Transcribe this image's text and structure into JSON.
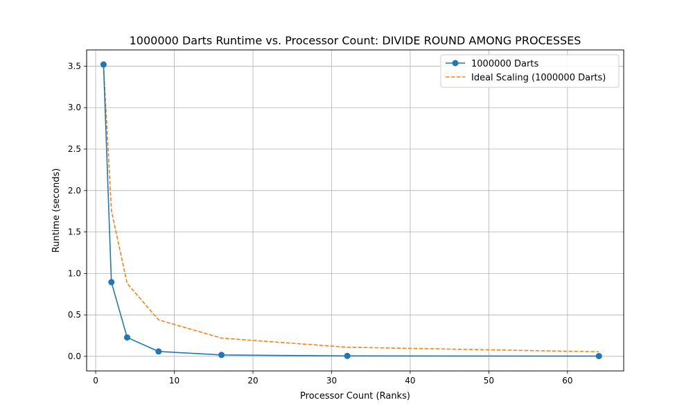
{
  "chart_data": {
    "type": "line",
    "title": "1000000 Darts Runtime vs. Processor Count: DIVIDE ROUND AMONG PROCESSES",
    "xlabel": "Processor Count (Ranks)",
    "ylabel": "Runtime (seconds)",
    "xlim": [
      -1.15,
      67.15
    ],
    "ylim": [
      -0.176,
      3.696
    ],
    "xticks": [
      0,
      10,
      20,
      30,
      40,
      50,
      60
    ],
    "xtick_labels": [
      "0",
      "10",
      "20",
      "30",
      "40",
      "50",
      "60"
    ],
    "yticks": [
      0.0,
      0.5,
      1.0,
      1.5,
      2.0,
      2.5,
      3.0,
      3.5
    ],
    "ytick_labels": [
      "0.0",
      "0.5",
      "1.0",
      "1.5",
      "2.0",
      "2.5",
      "3.0",
      "3.5"
    ],
    "grid": true,
    "legend_position": "top-right",
    "series": [
      {
        "name": "1000000 Darts",
        "style": "solid-marker",
        "color": "#1f77b4",
        "x": [
          1,
          2,
          4,
          8,
          16,
          32,
          64
        ],
        "y": [
          3.52,
          0.895,
          0.228,
          0.059,
          0.017,
          0.005,
          0.003
        ]
      },
      {
        "name": "Ideal Scaling (1000000 Darts)",
        "style": "dashed",
        "color": "#ff7f0e",
        "x": [
          1,
          2,
          4,
          8,
          16,
          32,
          64
        ],
        "y": [
          3.52,
          1.76,
          0.88,
          0.44,
          0.22,
          0.11,
          0.055
        ]
      }
    ]
  }
}
